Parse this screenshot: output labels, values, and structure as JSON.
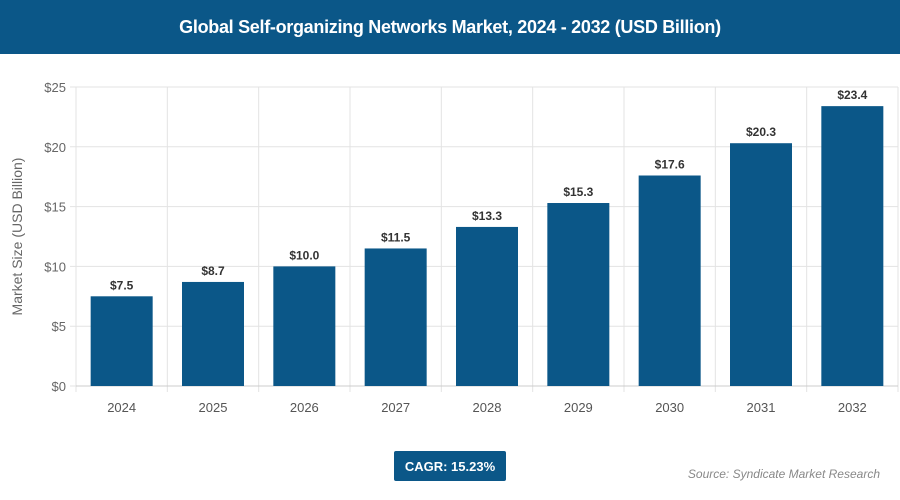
{
  "chart_data": {
    "type": "bar",
    "title": "Global Self-organizing Networks Market, 2024 - 2032 (USD Billion)",
    "categories": [
      "2024",
      "2025",
      "2026",
      "2027",
      "2028",
      "2029",
      "2030",
      "2031",
      "2032"
    ],
    "values": [
      7.5,
      8.7,
      10.0,
      11.5,
      13.3,
      15.3,
      17.6,
      20.3,
      23.4
    ],
    "data_labels": [
      "$7.5",
      "$8.7",
      "$10.0",
      "$11.5",
      "$13.3",
      "$15.3",
      "$17.6",
      "$20.3",
      "$23.4"
    ],
    "xlabel": "",
    "ylabel": "Market Size (USD Billion)",
    "ylim": [
      0,
      25
    ],
    "yticks": [
      0,
      5,
      10,
      15,
      20,
      25
    ],
    "ytick_labels": [
      "$0",
      "$5",
      "$10",
      "$15",
      "$20",
      "$25"
    ],
    "grid": true,
    "bar_color": "#0b5788"
  },
  "cagr": "CAGR: 15.23%",
  "source": "Source: Syndicate Market Research"
}
